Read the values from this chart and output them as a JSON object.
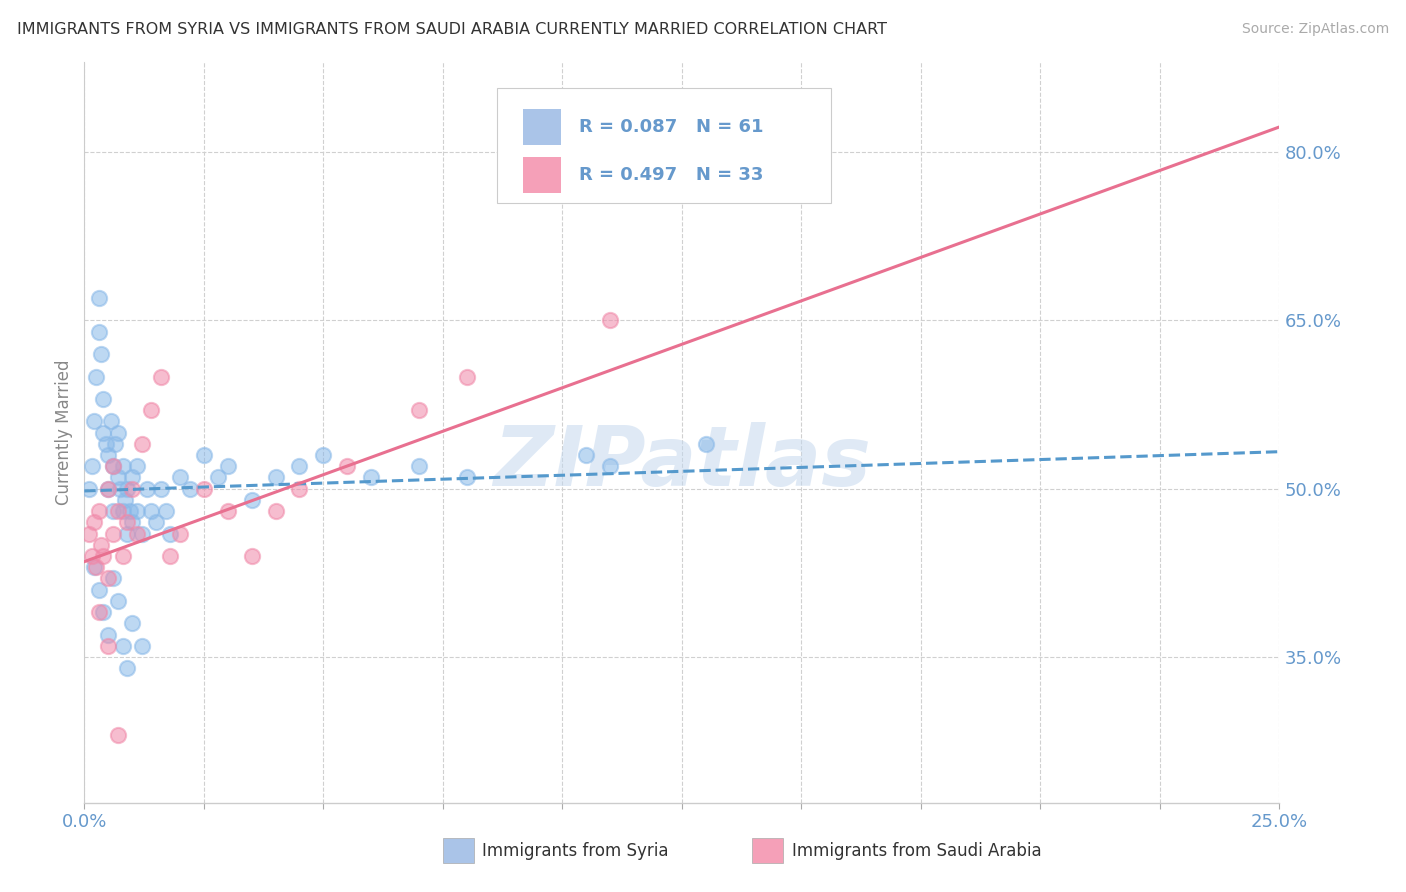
{
  "title": "IMMIGRANTS FROM SYRIA VS IMMIGRANTS FROM SAUDI ARABIA CURRENTLY MARRIED CORRELATION CHART",
  "source": "Source: ZipAtlas.com",
  "ylabel": "Currently Married",
  "watermark": "ZIPatlas",
  "xlim": [
    0.0,
    25.0
  ],
  "ylim": [
    22.0,
    88.0
  ],
  "yticks": [
    35.0,
    50.0,
    65.0,
    80.0
  ],
  "xticks": [
    0.0,
    2.5,
    5.0,
    7.5,
    10.0,
    12.5,
    15.0,
    17.5,
    20.0,
    22.5,
    25.0
  ],
  "legend": {
    "syria_label": "R = 0.087   N = 61",
    "saudi_label": "R = 0.497   N = 33",
    "syria_color": "#aac4e8",
    "saudi_color": "#f5a0b8"
  },
  "syria_scatter_color": "#88b8e8",
  "saudi_scatter_color": "#f088a8",
  "syria_line_color": "#5599cc",
  "saudi_line_color": "#e87090",
  "tick_color": "#6699cc",
  "background_color": "#ffffff",
  "grid_color": "#d0d0d0",
  "syria_points_x": [
    0.1,
    0.15,
    0.2,
    0.25,
    0.3,
    0.3,
    0.35,
    0.4,
    0.4,
    0.45,
    0.5,
    0.5,
    0.55,
    0.6,
    0.6,
    0.65,
    0.7,
    0.7,
    0.75,
    0.8,
    0.8,
    0.85,
    0.9,
    0.9,
    0.95,
    1.0,
    1.0,
    1.1,
    1.1,
    1.2,
    1.3,
    1.4,
    1.5,
    1.6,
    1.7,
    1.8,
    2.0,
    2.2,
    2.5,
    2.8,
    3.0,
    3.5,
    4.0,
    4.5,
    5.0,
    6.0,
    7.0,
    8.0,
    10.5,
    11.0,
    13.0,
    0.2,
    0.3,
    0.4,
    0.5,
    0.6,
    0.7,
    0.8,
    0.9,
    1.0,
    1.2
  ],
  "syria_points_y": [
    50.0,
    52.0,
    56.0,
    60.0,
    64.0,
    67.0,
    62.0,
    55.0,
    58.0,
    54.0,
    50.0,
    53.0,
    56.0,
    52.0,
    48.0,
    54.0,
    51.0,
    55.0,
    50.0,
    48.0,
    52.0,
    49.0,
    46.0,
    50.0,
    48.0,
    47.0,
    51.0,
    48.0,
    52.0,
    46.0,
    50.0,
    48.0,
    47.0,
    50.0,
    48.0,
    46.0,
    51.0,
    50.0,
    53.0,
    51.0,
    52.0,
    49.0,
    51.0,
    52.0,
    53.0,
    51.0,
    52.0,
    51.0,
    53.0,
    52.0,
    54.0,
    43.0,
    41.0,
    39.0,
    37.0,
    42.0,
    40.0,
    36.0,
    34.0,
    38.0,
    36.0
  ],
  "saudi_points_x": [
    0.1,
    0.15,
    0.2,
    0.25,
    0.3,
    0.35,
    0.4,
    0.5,
    0.5,
    0.6,
    0.6,
    0.7,
    0.8,
    0.9,
    1.0,
    1.1,
    1.2,
    1.4,
    1.6,
    1.8,
    2.0,
    2.5,
    3.0,
    3.5,
    4.0,
    4.5,
    5.5,
    7.0,
    8.0,
    11.0,
    0.3,
    0.5,
    0.7
  ],
  "saudi_points_y": [
    46.0,
    44.0,
    47.0,
    43.0,
    48.0,
    45.0,
    44.0,
    50.0,
    42.0,
    46.0,
    52.0,
    48.0,
    44.0,
    47.0,
    50.0,
    46.0,
    54.0,
    57.0,
    60.0,
    44.0,
    46.0,
    50.0,
    48.0,
    44.0,
    48.0,
    50.0,
    52.0,
    57.0,
    60.0,
    65.0,
    39.0,
    36.0,
    28.0
  ],
  "syria_trend_intercept": 49.8,
  "syria_trend_slope": 0.14,
  "saudi_trend_intercept": 43.5,
  "saudi_trend_slope": 1.55,
  "bottom_legend_syria": "Immigrants from Syria",
  "bottom_legend_saudi": "Immigrants from Saudi Arabia"
}
